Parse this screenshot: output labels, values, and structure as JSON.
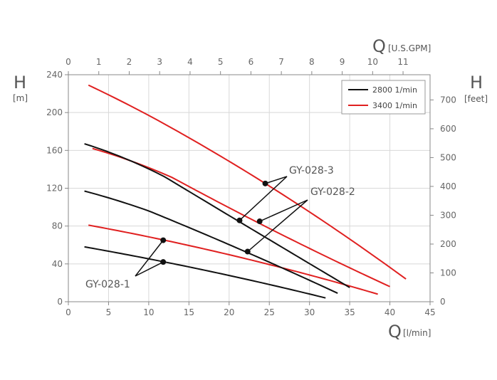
{
  "chart_data": {
    "type": "line",
    "x_bottom": {
      "symbol": "Q",
      "unit": "[l/min]",
      "ticks": [
        "0",
        "5",
        "10",
        "15",
        "20",
        "25",
        "30",
        "35",
        "40",
        "45"
      ],
      "range": [
        0,
        45
      ]
    },
    "x_top": {
      "symbol": "Q",
      "unit": "[U.S.GPM]",
      "ticks": [
        "0",
        "1",
        "2",
        "3",
        "4",
        "5",
        "6",
        "7",
        "8",
        "9",
        "10",
        "11"
      ]
    },
    "y_left": {
      "symbol": "H",
      "unit": "[m]",
      "ticks": [
        "0",
        "40",
        "80",
        "120",
        "160",
        "200",
        "240"
      ],
      "range": [
        0,
        240
      ]
    },
    "y_right": {
      "symbol": "H",
      "unit": "[feet]",
      "ticks": [
        "0",
        "100",
        "200",
        "300",
        "400",
        "500",
        "600",
        "700"
      ]
    },
    "grid": true,
    "legend": {
      "position": "top-right",
      "entries": [
        {
          "label": "2800 1/min",
          "color": "#111111"
        },
        {
          "label": "3400 1/min",
          "color": "#e02020"
        }
      ]
    },
    "series": [
      {
        "model": "GY-028-1",
        "speed": "2800 1/min",
        "color": "#111111",
        "x": [
          2,
          12,
          32
        ],
        "y": [
          58,
          42,
          4
        ]
      },
      {
        "model": "GY-028-1",
        "speed": "3400 1/min",
        "color": "#e02020",
        "x": [
          2.5,
          12,
          38.5
        ],
        "y": [
          81,
          65,
          8
        ]
      },
      {
        "model": "GY-028-2",
        "speed": "2800 1/min",
        "color": "#111111",
        "x": [
          2,
          10,
          22,
          33.5
        ],
        "y": [
          117,
          96,
          53,
          9
        ]
      },
      {
        "model": "GY-028-2",
        "speed": "3400 1/min",
        "color": "#e02020",
        "x": [
          3,
          13,
          23.5,
          40
        ],
        "y": [
          162,
          131,
          84,
          16
        ]
      },
      {
        "model": "GY-028-3",
        "speed": "2800 1/min",
        "color": "#111111",
        "x": [
          2,
          12,
          21,
          35
        ],
        "y": [
          167,
          132,
          86,
          15
        ]
      },
      {
        "model": "GY-028-3",
        "speed": "3400 1/min",
        "color": "#e02020",
        "x": [
          2.5,
          10,
          24.5,
          42
        ],
        "y": [
          229,
          197,
          125,
          24
        ]
      }
    ],
    "annotations": [
      {
        "text": "GY-028-1",
        "points": [
          {
            "x": 11.8,
            "y": 65
          },
          {
            "x": 11.8,
            "y": 42
          }
        ]
      },
      {
        "text": "GY-028-2",
        "points": [
          {
            "x": 23.8,
            "y": 85
          },
          {
            "x": 22.3,
            "y": 53
          }
        ]
      },
      {
        "text": "GY-028-3",
        "points": [
          {
            "x": 24.5,
            "y": 125
          },
          {
            "x": 21.3,
            "y": 86
          }
        ]
      }
    ]
  }
}
